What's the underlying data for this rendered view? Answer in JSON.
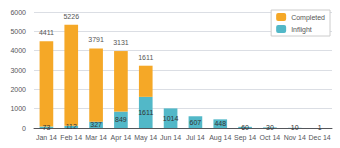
{
  "chart_data": {
    "type": "bar",
    "stacked": true,
    "categories": [
      "Jan 14",
      "Feb 14",
      "Mar 14",
      "Apr 14",
      "May 14",
      "Jun 14",
      "Jul 14",
      "Aug 14",
      "Sep 14",
      "Oct 14",
      "Nov 14",
      "Dec 14"
    ],
    "series": [
      {
        "name": "Inflight",
        "color": "#52B8C8",
        "values": [
          73,
          112,
          327,
          849,
          1611,
          1014,
          607,
          448,
          60,
          30,
          10,
          1
        ]
      },
      {
        "name": "Completed",
        "color": "#F5A827",
        "values": [
          4411,
          5226,
          3791,
          3131,
          1611,
          0,
          0,
          0,
          0,
          0,
          0,
          0
        ]
      }
    ],
    "ylim": [
      0,
      6000
    ],
    "yticks": [
      0,
      1000,
      2000,
      3000,
      4000,
      5000,
      6000
    ],
    "grid": true,
    "legend": "upper right",
    "data_labels": true
  }
}
